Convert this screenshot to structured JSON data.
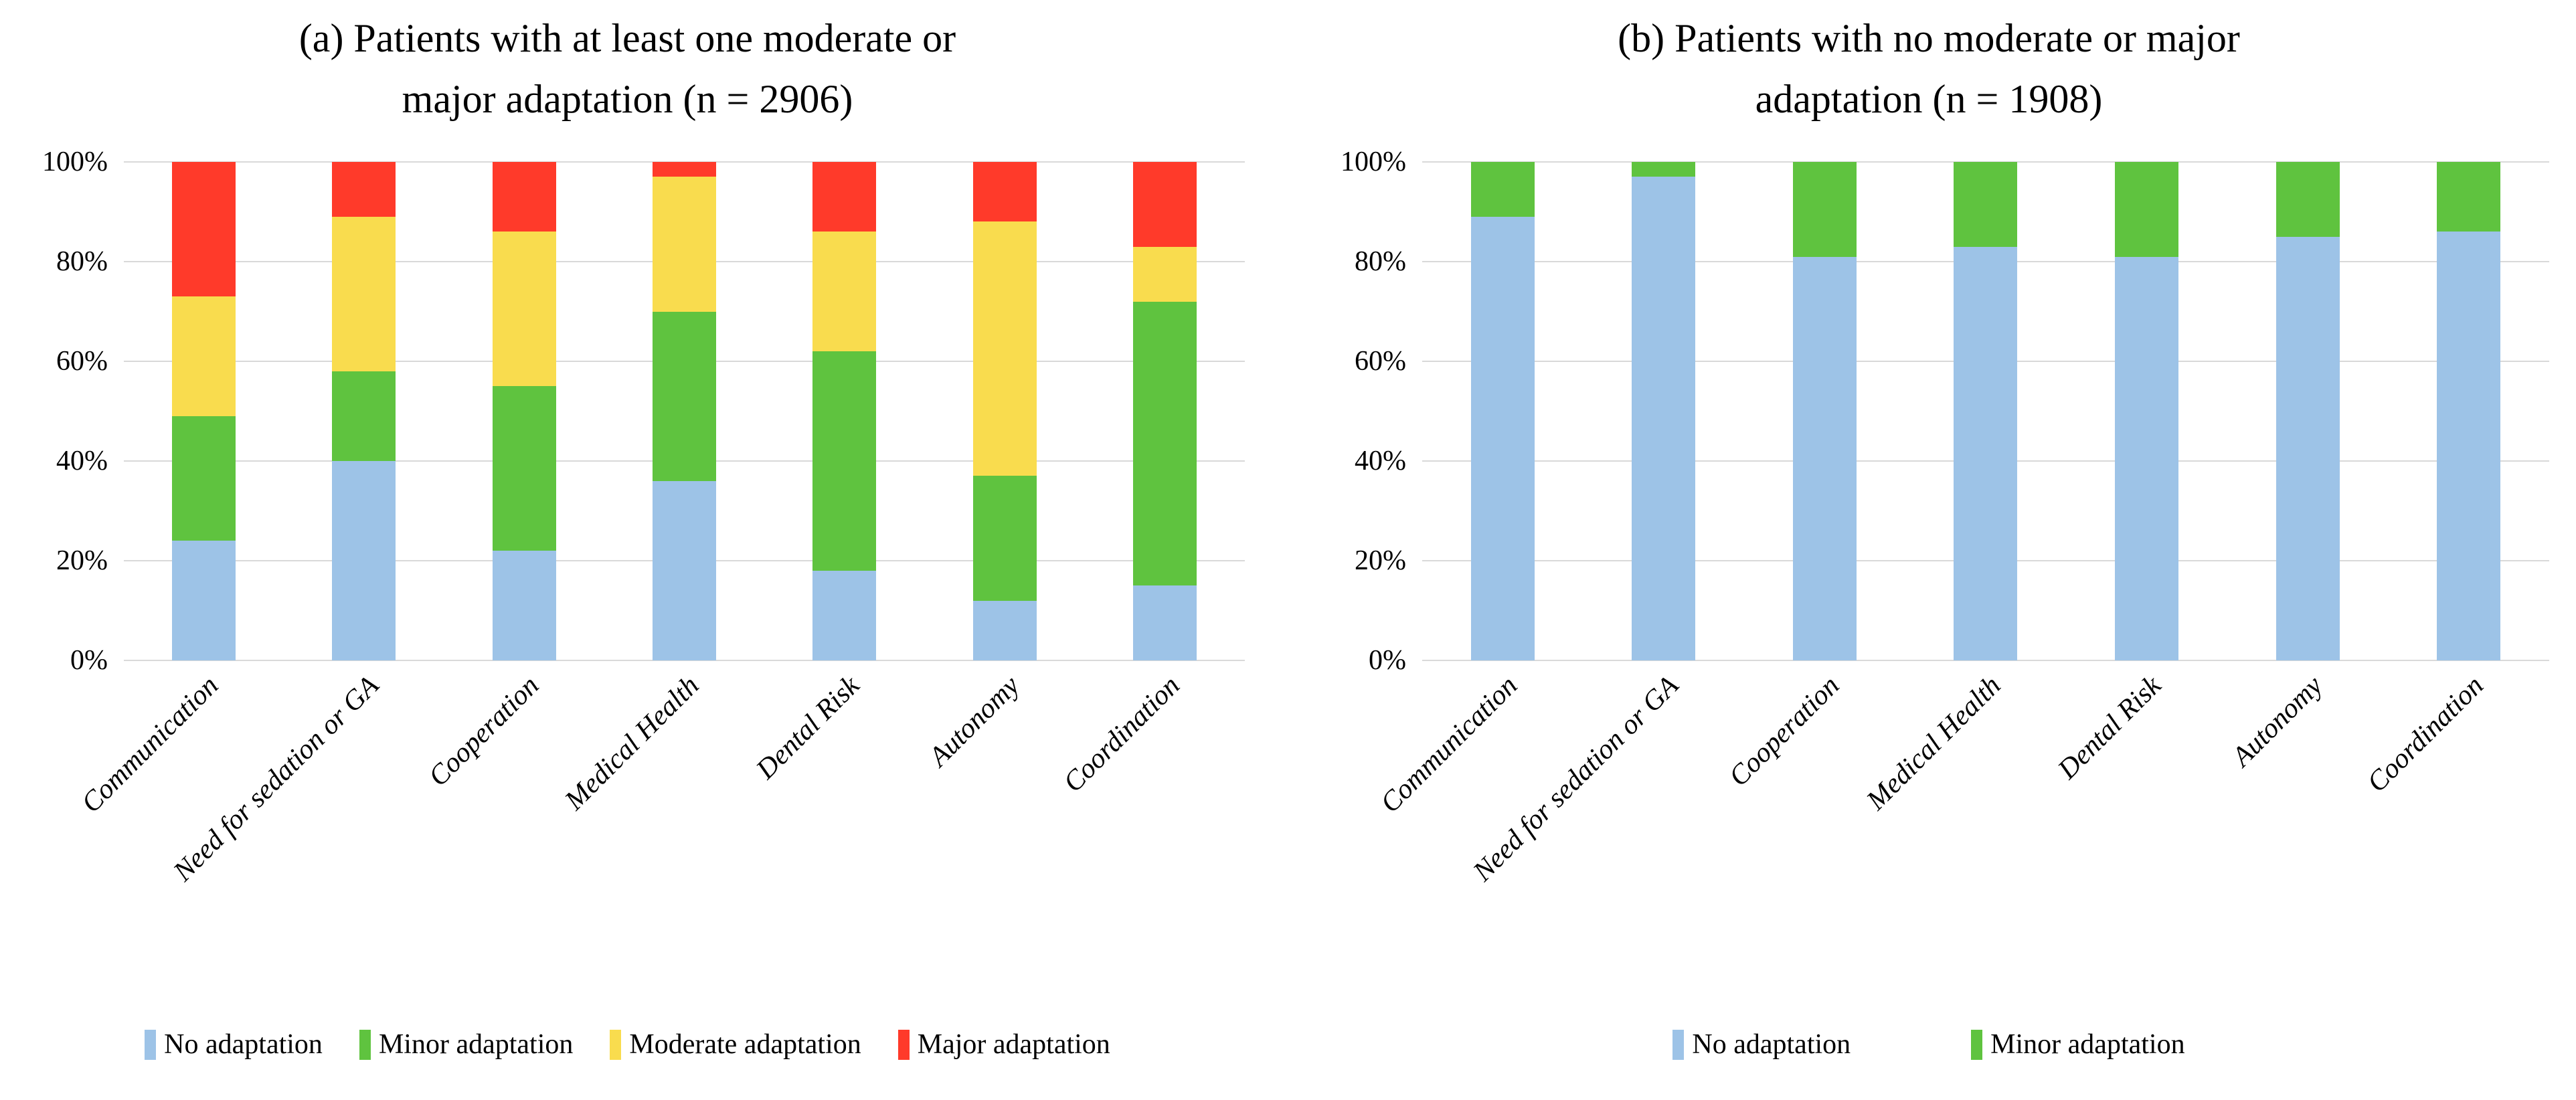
{
  "figure": {
    "background": "#ffffff"
  },
  "colors": {
    "gridline": "#D9D9D9",
    "text": "#000000"
  },
  "chart_data": [
    {
      "id": "a",
      "type": "bar",
      "subtype": "100%-stacked-column",
      "title_line1": "(a) Patients with at least one moderate or",
      "title_line2": "major adaptation (n = 2906)",
      "categories": [
        "Communication",
        "Need for sedation or GA",
        "Cooperation",
        "Medical Health",
        "Dental Risk",
        "Autonomy",
        "Coordination"
      ],
      "y_ticks": [
        "100%",
        "80%",
        "60%",
        "40%",
        "20%",
        "0%"
      ],
      "ylim": [
        0,
        100
      ],
      "grid": true,
      "legend_position": "bottom",
      "series": [
        {
          "name": "No adaptation",
          "color": "#9DC3E7",
          "values": [
            24,
            40,
            22,
            36,
            18,
            12,
            15
          ]
        },
        {
          "name": "Minor adaptation",
          "color": "#5FC33F",
          "values": [
            25,
            18,
            33,
            34,
            44,
            25,
            57
          ]
        },
        {
          "name": "Moderate adaptation",
          "color": "#F9DC4E",
          "values": [
            24,
            31,
            31,
            27,
            24,
            51,
            11
          ]
        },
        {
          "name": "Major adaptation",
          "color": "#FF3A2A",
          "values": [
            27,
            11,
            14,
            3,
            14,
            12,
            17
          ]
        }
      ]
    },
    {
      "id": "b",
      "type": "bar",
      "subtype": "100%-stacked-column",
      "title_line1": "(b) Patients with no moderate or major",
      "title_line2": "adaptation (n = 1908)",
      "categories": [
        "Communication",
        "Need for sedation or GA",
        "Cooperation",
        "Medical Health",
        "Dental Risk",
        "Autonomy",
        "Coordination"
      ],
      "y_ticks": [
        "100%",
        "80%",
        "60%",
        "40%",
        "20%",
        "0%"
      ],
      "ylim": [
        0,
        100
      ],
      "grid": true,
      "legend_position": "bottom",
      "series": [
        {
          "name": "No adaptation",
          "color": "#9DC3E7",
          "values": [
            89,
            97,
            81,
            83,
            81,
            85,
            86
          ]
        },
        {
          "name": "Minor adaptation",
          "color": "#5FC33F",
          "values": [
            11,
            3,
            19,
            17,
            19,
            15,
            14
          ]
        }
      ]
    }
  ]
}
